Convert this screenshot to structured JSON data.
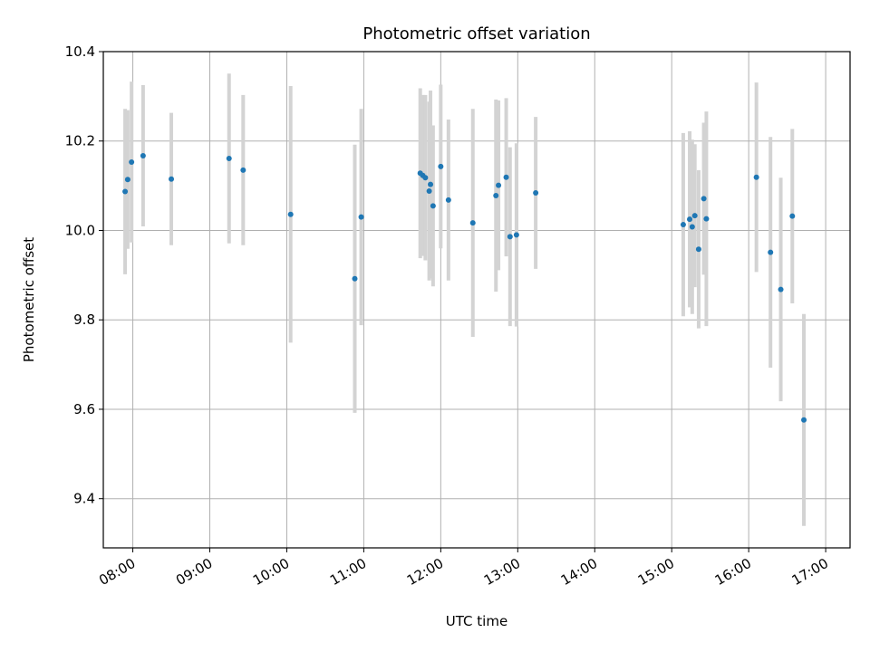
{
  "chart_data": {
    "type": "scatter",
    "title": "Photometric offset variation",
    "xlabel": "UTC time",
    "ylabel": "Photometric offset",
    "x_ticks": [
      "08:00",
      "09:00",
      "10:00",
      "11:00",
      "12:00",
      "13:00",
      "14:00",
      "15:00",
      "16:00",
      "17:00"
    ],
    "y_ticks": [
      "9.4",
      "9.6",
      "9.8",
      "10.0",
      "10.2",
      "10.4"
    ],
    "xlim": [
      "07:37",
      "17:19"
    ],
    "ylim": [
      9.29,
      10.4
    ],
    "grid": true,
    "error_bar_color": "#d3d3d3",
    "point_color": "#1f77b4",
    "points": [
      {
        "time": "07:54",
        "y": 10.087,
        "err": 0.185
      },
      {
        "time": "07:56",
        "y": 10.114,
        "err": 0.155
      },
      {
        "time": "07:59",
        "y": 10.153,
        "err": 0.18
      },
      {
        "time": "08:08",
        "y": 10.167,
        "err": 0.158
      },
      {
        "time": "08:30",
        "y": 10.115,
        "err": 0.148
      },
      {
        "time": "09:15",
        "y": 10.161,
        "err": 0.19
      },
      {
        "time": "09:26",
        "y": 10.135,
        "err": 0.168
      },
      {
        "time": "10:03",
        "y": 10.036,
        "err": 0.287
      },
      {
        "time": "10:53",
        "y": 9.892,
        "err": 0.3
      },
      {
        "time": "10:58",
        "y": 10.03,
        "err": 0.242
      },
      {
        "time": "11:44",
        "y": 10.128,
        "err": 0.19
      },
      {
        "time": "11:46",
        "y": 10.123,
        "err": 0.18
      },
      {
        "time": "11:48",
        "y": 10.118,
        "err": 0.185
      },
      {
        "time": "11:51",
        "y": 10.088,
        "err": 0.2
      },
      {
        "time": "11:52",
        "y": 10.103,
        "err": 0.21
      },
      {
        "time": "11:54",
        "y": 10.055,
        "err": 0.18
      },
      {
        "time": "12:00",
        "y": 10.143,
        "err": 0.183
      },
      {
        "time": "12:06",
        "y": 10.068,
        "err": 0.18
      },
      {
        "time": "12:25",
        "y": 10.017,
        "err": 0.255
      },
      {
        "time": "12:43",
        "y": 10.078,
        "err": 0.215
      },
      {
        "time": "12:45",
        "y": 10.101,
        "err": 0.19
      },
      {
        "time": "12:51",
        "y": 10.119,
        "err": 0.177
      },
      {
        "time": "12:54",
        "y": 9.986,
        "err": 0.2
      },
      {
        "time": "12:59",
        "y": 9.99,
        "err": 0.205
      },
      {
        "time": "13:14",
        "y": 10.084,
        "err": 0.17
      },
      {
        "time": "15:09",
        "y": 10.013,
        "err": 0.205
      },
      {
        "time": "15:14",
        "y": 10.025,
        "err": 0.197
      },
      {
        "time": "15:16",
        "y": 10.008,
        "err": 0.195
      },
      {
        "time": "15:18",
        "y": 10.033,
        "err": 0.16
      },
      {
        "time": "15:21",
        "y": 9.958,
        "err": 0.177
      },
      {
        "time": "15:25",
        "y": 10.071,
        "err": 0.17
      },
      {
        "time": "15:27",
        "y": 10.026,
        "err": 0.24
      },
      {
        "time": "16:06",
        "y": 10.119,
        "err": 0.212
      },
      {
        "time": "16:17",
        "y": 9.951,
        "err": 0.258
      },
      {
        "time": "16:25",
        "y": 9.868,
        "err": 0.25
      },
      {
        "time": "16:34",
        "y": 10.032,
        "err": 0.195
      },
      {
        "time": "16:43",
        "y": 9.576,
        "err": 0.237
      }
    ]
  }
}
